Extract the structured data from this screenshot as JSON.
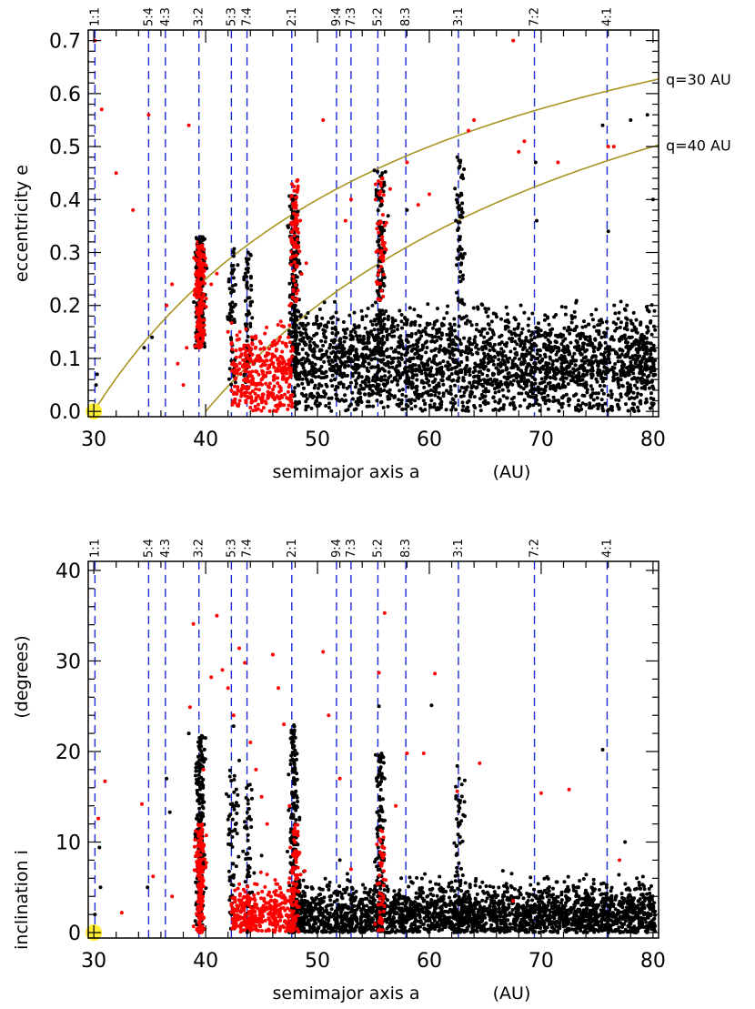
{
  "chart_data": [
    {
      "type": "scatter",
      "id": "ecc",
      "xlabel": "semimajor axis a",
      "xunit": "(AU)",
      "ylabel": "eccentricity e",
      "xlim": [
        29.5,
        80.5
      ],
      "ylim": [
        -0.01,
        0.72
      ],
      "xticks": [
        30,
        40,
        50,
        60,
        70,
        80
      ],
      "xtick_labels": [
        "30",
        "40",
        "50",
        "60",
        "70",
        "80"
      ],
      "yticks": [
        0.0,
        0.1,
        0.2,
        0.3,
        0.4,
        0.5,
        0.6,
        0.7
      ],
      "ytick_labels": [
        "0.0",
        "0.1",
        "0.2",
        "0.3",
        "0.4",
        "0.5",
        "0.6",
        "0.7"
      ],
      "curves": [
        {
          "name": "q=30 AU",
          "q": 30,
          "label": "q=30 AU"
        },
        {
          "name": "q=40 AU",
          "q": 40,
          "label": "q=40 AU"
        }
      ],
      "neptune_marker": {
        "a": 30,
        "e": 0.0,
        "color": "#ffee33"
      },
      "series": [
        {
          "name": "red",
          "color": "#ff0000",
          "points": [
            [
              30.1,
              0.7
            ],
            [
              30.7,
              0.57
            ],
            [
              32.0,
              0.45
            ],
            [
              33.5,
              0.38
            ],
            [
              34.9,
              0.56
            ],
            [
              38.5,
              0.54
            ],
            [
              36.5,
              0.2
            ],
            [
              37.0,
              0.24
            ],
            [
              37.5,
              0.09
            ],
            [
              38.0,
              0.05
            ],
            [
              38.3,
              0.12
            ],
            [
              39.0,
              0.22
            ],
            [
              39.5,
              0.28
            ],
            [
              39.7,
              0.31
            ],
            [
              40.5,
              0.24
            ],
            [
              41.0,
              0.26
            ],
            [
              42.0,
              0.15
            ],
            [
              42.5,
              0.02
            ],
            [
              43.0,
              0.08
            ],
            [
              43.5,
              0.03
            ],
            [
              44.0,
              0.1
            ],
            [
              44.5,
              0.14
            ],
            [
              45.0,
              0.06
            ],
            [
              45.5,
              0.11
            ],
            [
              46.0,
              0.13
            ],
            [
              46.5,
              0.09
            ],
            [
              47.0,
              0.16
            ],
            [
              47.5,
              0.2
            ],
            [
              48.0,
              0.35
            ],
            [
              48.3,
              0.31
            ],
            [
              49.0,
              0.28
            ],
            [
              50.5,
              0.55
            ],
            [
              52.5,
              0.36
            ],
            [
              53.0,
              0.4
            ],
            [
              55.2,
              0.4
            ],
            [
              55.8,
              0.44
            ],
            [
              56.5,
              0.42
            ],
            [
              58.0,
              0.47
            ],
            [
              59.0,
              0.39
            ],
            [
              60.0,
              0.41
            ],
            [
              63.5,
              0.53
            ],
            [
              64.0,
              0.55
            ],
            [
              67.5,
              0.7
            ],
            [
              68.0,
              0.49
            ],
            [
              68.5,
              0.51
            ],
            [
              71.5,
              0.47
            ],
            [
              76.0,
              0.5
            ],
            [
              76.5,
              0.5
            ]
          ]
        },
        {
          "name": "black",
          "color": "#000000",
          "points": [
            [
              30.2,
              0.05
            ],
            [
              30.3,
              0.07
            ],
            [
              34.5,
              0.12
            ],
            [
              35.2,
              0.14
            ],
            [
              39.5,
              0.32
            ],
            [
              39.6,
              0.25
            ],
            [
              39.7,
              0.18
            ],
            [
              42.5,
              0.3
            ],
            [
              42.6,
              0.2
            ],
            [
              43.8,
              0.3
            ],
            [
              44.0,
              0.2
            ],
            [
              47.8,
              0.4
            ],
            [
              47.9,
              0.3
            ],
            [
              48.0,
              0.2
            ],
            [
              50.0,
              0.1
            ],
            [
              53.0,
              0.15
            ],
            [
              55.8,
              0.45
            ],
            [
              56.0,
              0.3
            ],
            [
              58.0,
              0.38
            ],
            [
              62.5,
              0.48
            ],
            [
              62.8,
              0.37
            ],
            [
              63.0,
              0.25
            ],
            [
              69.5,
              0.47
            ],
            [
              69.6,
              0.36
            ],
            [
              75.5,
              0.54
            ],
            [
              76.0,
              0.34
            ],
            [
              78.0,
              0.55
            ],
            [
              79.5,
              0.56
            ],
            [
              80.0,
              0.4
            ]
          ]
        }
      ]
    },
    {
      "type": "scatter",
      "id": "inc",
      "xlabel": "semimajor axis a",
      "xunit": "(AU)",
      "ylabel": "inclination i",
      "yunit": "(degrees)",
      "xlim": [
        29.5,
        80.5
      ],
      "ylim": [
        -0.6,
        41
      ],
      "xticks": [
        30,
        40,
        50,
        60,
        70,
        80
      ],
      "xtick_labels": [
        "30",
        "40",
        "50",
        "60",
        "70",
        "80"
      ],
      "yticks": [
        0,
        10,
        20,
        30,
        40
      ],
      "ytick_labels": [
        "0",
        "10",
        "20",
        "30",
        "40"
      ],
      "neptune_marker": {
        "a": 30,
        "i": 0.0,
        "color": "#ffee33"
      },
      "series": [
        {
          "name": "red",
          "color": "#ff0000",
          "points": [
            [
              30.4,
              12.6
            ],
            [
              31.0,
              16.7
            ],
            [
              32.5,
              2.2
            ],
            [
              34.3,
              14.2
            ],
            [
              35.3,
              6.2
            ],
            [
              37.0,
              4.0
            ],
            [
              38.5,
              22.0
            ],
            [
              38.6,
              24.9
            ],
            [
              38.9,
              34.1
            ],
            [
              39.0,
              6.9
            ],
            [
              39.8,
              18.0
            ],
            [
              40.5,
              28.2
            ],
            [
              41.0,
              35.0
            ],
            [
              41.5,
              29.0
            ],
            [
              42.0,
              27.0
            ],
            [
              42.5,
              24.0
            ],
            [
              43.0,
              31.4
            ],
            [
              43.5,
              29.8
            ],
            [
              44.0,
              21.0
            ],
            [
              44.5,
              18.0
            ],
            [
              45.0,
              15.0
            ],
            [
              45.5,
              12.0
            ],
            [
              46.0,
              30.7
            ],
            [
              46.5,
              27.0
            ],
            [
              47.0,
              23.0
            ],
            [
              47.5,
              14.0
            ],
            [
              48.0,
              9.0
            ],
            [
              50.5,
              31.0
            ],
            [
              51.0,
              24.0
            ],
            [
              52.0,
              17.0
            ],
            [
              53.0,
              7.0
            ],
            [
              55.5,
              28.7
            ],
            [
              56.0,
              35.3
            ],
            [
              57.0,
              14.0
            ],
            [
              58.0,
              19.8
            ],
            [
              59.5,
              19.8
            ],
            [
              60.5,
              28.6
            ],
            [
              62.5,
              15.6
            ],
            [
              64.5,
              18.7
            ],
            [
              67.5,
              3.5
            ],
            [
              70.0,
              15.4
            ],
            [
              72.5,
              15.8
            ],
            [
              77.0,
              8.0
            ]
          ]
        },
        {
          "name": "black",
          "color": "#000000",
          "points": [
            [
              30.1,
              2.0
            ],
            [
              30.5,
              9.4
            ],
            [
              30.6,
              5.0
            ],
            [
              34.8,
              5.0
            ],
            [
              36.5,
              17.0
            ],
            [
              36.8,
              13.3
            ],
            [
              38.5,
              22.0
            ],
            [
              39.5,
              18.6
            ],
            [
              42.5,
              22.8
            ],
            [
              43.0,
              19.0
            ],
            [
              45.0,
              8.5
            ],
            [
              47.8,
              22.0
            ],
            [
              48.0,
              18.0
            ],
            [
              52.0,
              8.0
            ],
            [
              55.5,
              25.0
            ],
            [
              56.0,
              17.0
            ],
            [
              60.2,
              25.1
            ],
            [
              62.5,
              18.4
            ],
            [
              75.5,
              20.2
            ],
            [
              77.5,
              10.0
            ]
          ]
        }
      ]
    }
  ],
  "resonances": [
    {
      "label": "1:1",
      "a": 30.1
    },
    {
      "label": "5:4",
      "a": 34.9
    },
    {
      "label": "4:3",
      "a": 36.4
    },
    {
      "label": "3:2",
      "a": 39.4
    },
    {
      "label": "5:3",
      "a": 42.3
    },
    {
      "label": "7:4",
      "a": 43.7
    },
    {
      "label": "2:1",
      "a": 47.7
    },
    {
      "label": "9:4",
      "a": 51.7
    },
    {
      "label": "7:3",
      "a": 53.0
    },
    {
      "label": "5:2",
      "a": 55.4
    },
    {
      "label": "8:3",
      "a": 57.9
    },
    {
      "label": "3:1",
      "a": 62.6
    },
    {
      "label": "7:2",
      "a": 69.4
    },
    {
      "label": "4:1",
      "a": 75.9
    }
  ],
  "colors": {
    "resonance": "#1a2bd6",
    "q_curve": "#a89420",
    "neptune": "#ffee33",
    "red": "#ff0000",
    "black": "#000000"
  }
}
